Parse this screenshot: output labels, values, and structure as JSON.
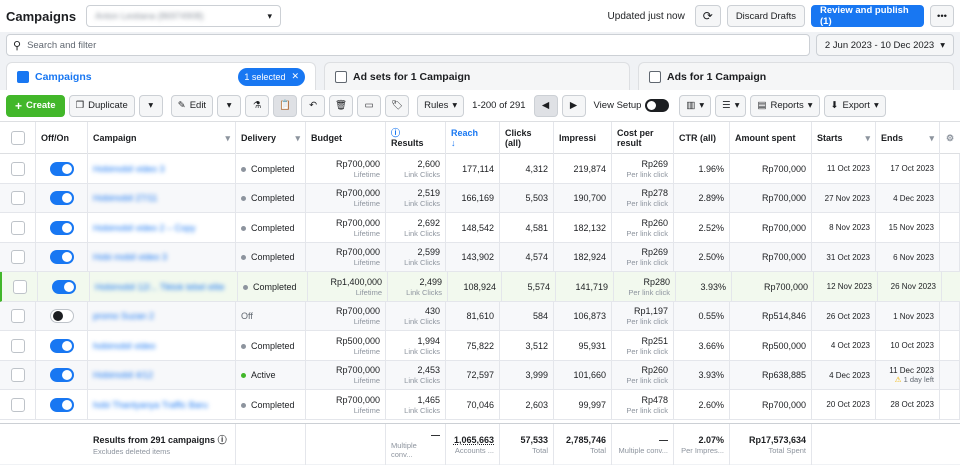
{
  "topbar": {
    "title": "Campaigns",
    "account": "Anton Lestiana (86974908)",
    "updated": "Updated just now",
    "discard": "Discard Drafts",
    "publish": "Review and publish (1)"
  },
  "search": {
    "placeholder": "Search and filter",
    "date_range": "2 Jun 2023 - 10 Dec 2023"
  },
  "tabs": {
    "campaigns": "Campaigns",
    "selected": "1 selected",
    "adsets": "Ad sets for 1 Campaign",
    "ads": "Ads for 1 Campaign"
  },
  "toolbar": {
    "create": "Create",
    "duplicate": "Duplicate",
    "edit": "Edit",
    "rules": "Rules",
    "pager": "1-200 of 291",
    "view_setup": "View Setup",
    "reports": "Reports",
    "export": "Export"
  },
  "columns": {
    "offon": "Off/On",
    "campaign": "Campaign",
    "delivery": "Delivery",
    "budget": "Budget",
    "results": "Results",
    "reach": "Reach",
    "clicks": "Clicks (all)",
    "impressions": "Impressi",
    "cpr": "Cost per result",
    "ctr": "CTR (all)",
    "spent": "Amount spent",
    "starts": "Starts",
    "ends": "Ends"
  },
  "rows": [
    {
      "on": true,
      "name": "Hobimobil video 3",
      "delivery": "Completed",
      "budget": "Rp700,000",
      "budget_sub": "Lifetime",
      "results": "2,600",
      "results_sub": "Link Clicks",
      "reach": "177,114",
      "clicks": "4,312",
      "impr": "219,874",
      "cpr": "Rp269",
      "cpr_sub": "Per link click",
      "ctr": "1.96%",
      "spent": "Rp700,000",
      "starts": "11 Oct 2023",
      "ends": "17 Oct 2023",
      "ends_note": ""
    },
    {
      "on": true,
      "name": "Hobimobil 27/11",
      "delivery": "Completed",
      "budget": "Rp700,000",
      "budget_sub": "Lifetime",
      "results": "2,519",
      "results_sub": "Link Clicks",
      "reach": "166,169",
      "clicks": "5,503",
      "impr": "190,700",
      "cpr": "Rp278",
      "cpr_sub": "Per link click",
      "ctr": "2.89%",
      "spent": "Rp700,000",
      "starts": "27 Nov 2023",
      "ends": "4 Dec 2023",
      "ends_note": ""
    },
    {
      "on": true,
      "name": "Hobimobil video 2 – Copy",
      "delivery": "Completed",
      "budget": "Rp700,000",
      "budget_sub": "Lifetime",
      "results": "2,692",
      "results_sub": "Link Clicks",
      "reach": "148,542",
      "clicks": "4,581",
      "impr": "182,132",
      "cpr": "Rp260",
      "cpr_sub": "Per link click",
      "ctr": "2.52%",
      "spent": "Rp700,000",
      "starts": "8 Nov 2023",
      "ends": "15 Nov 2023",
      "ends_note": ""
    },
    {
      "on": true,
      "name": "Hobi mobil video 3",
      "delivery": "Completed",
      "budget": "Rp700,000",
      "budget_sub": "Lifetime",
      "results": "2,599",
      "results_sub": "Link Clicks",
      "reach": "143,902",
      "clicks": "4,574",
      "impr": "182,924",
      "cpr": "Rp269",
      "cpr_sub": "Per link click",
      "ctr": "2.50%",
      "spent": "Rp700,000",
      "starts": "31 Oct 2023",
      "ends": "6 Nov 2023",
      "ends_note": ""
    },
    {
      "on": true,
      "name": "Hobimobil 12/... Tiktok tebel elite",
      "delivery": "Completed",
      "budget": "Rp1,400,000",
      "budget_sub": "Lifetime",
      "results": "2,499",
      "results_sub": "Link Clicks",
      "reach": "108,924",
      "clicks": "5,574",
      "impr": "141,719",
      "cpr": "Rp280",
      "cpr_sub": "Per link click",
      "ctr": "3.93%",
      "spent": "Rp700,000",
      "starts": "12 Nov 2023",
      "ends": "26 Nov 2023",
      "ends_note": ""
    },
    {
      "on": false,
      "name": "promo Suzan 2",
      "delivery": "Off",
      "budget": "Rp700,000",
      "budget_sub": "Lifetime",
      "results": "430",
      "results_sub": "Link Clicks",
      "reach": "81,610",
      "clicks": "584",
      "impr": "106,873",
      "cpr": "Rp1,197",
      "cpr_sub": "Per link click",
      "ctr": "0.55%",
      "spent": "Rp514,846",
      "starts": "26 Oct 2023",
      "ends": "1 Nov 2023",
      "ends_note": ""
    },
    {
      "on": true,
      "name": "hobimobil video",
      "delivery": "Completed",
      "budget": "Rp500,000",
      "budget_sub": "Lifetime",
      "results": "1,994",
      "results_sub": "Link Clicks",
      "reach": "75,822",
      "clicks": "3,512",
      "impr": "95,931",
      "cpr": "Rp251",
      "cpr_sub": "Per link click",
      "ctr": "3.66%",
      "spent": "Rp500,000",
      "starts": "4 Oct 2023",
      "ends": "10 Oct 2023",
      "ends_note": ""
    },
    {
      "on": true,
      "name": "Hobimobil 4/12",
      "delivery": "Active",
      "budget": "Rp700,000",
      "budget_sub": "Lifetime",
      "results": "2,453",
      "results_sub": "Link Clicks",
      "reach": "72,597",
      "clicks": "3,999",
      "impr": "101,660",
      "cpr": "Rp260",
      "cpr_sub": "Per link click",
      "ctr": "3.93%",
      "spent": "Rp638,885",
      "starts": "4 Dec 2023",
      "ends": "11 Dec 2023",
      "ends_note": "1 day left"
    },
    {
      "on": true,
      "name": "hobi Thantyanya Traffic Baru",
      "delivery": "Completed",
      "budget": "Rp700,000",
      "budget_sub": "Lifetime",
      "results": "1,465",
      "results_sub": "Link Clicks",
      "reach": "70,046",
      "clicks": "2,603",
      "impr": "99,997",
      "cpr": "Rp478",
      "cpr_sub": "Per link click",
      "ctr": "2.60%",
      "spent": "Rp700,000",
      "starts": "20 Oct 2023",
      "ends": "28 Oct 2023",
      "ends_note": ""
    }
  ],
  "footer": {
    "title": "Results from 291 campaigns",
    "sub": "Excludes deleted items",
    "results": "—",
    "results_sub": "Multiple conv...",
    "reach": "1,065,663",
    "reach_sub": "Accounts ...",
    "clicks": "57,533",
    "clicks_sub": "Total",
    "impr": "2,785,746",
    "impr_sub": "Total",
    "cpr": "—",
    "cpr_sub": "Multiple conv...",
    "ctr": "2.07%",
    "ctr_sub": "Per Impres...",
    "spent": "Rp17,573,634",
    "spent_sub": "Total Spent"
  }
}
